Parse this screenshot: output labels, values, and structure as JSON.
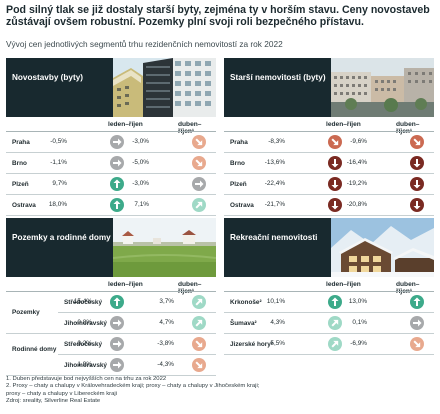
{
  "headline": "Pod silný tlak se již dostaly starší byty, zejména ty v horším stavu. Ceny novostaveb zůstávají ovšem robustní. Pozemky plní svoji roli bezpečného přístavu.",
  "subtitle": "Vývoj cen jednotlivých segmentů trhu rezidenčních nemovitostí za rok 2022",
  "colors": {
    "header_bg": "#18292f",
    "up_strong": "#3daa8a",
    "up_light": "#9fd9c6",
    "neutral": "#a7a9ab",
    "down_light": "#e8a98e",
    "down_mid": "#cb6a52",
    "down_strong": "#7a2a22"
  },
  "panels": {
    "novostavby": {
      "title": "Novostavby (byty)",
      "col1": "leden–říjen",
      "col2": "duben–říjen¹",
      "rows": [
        {
          "label": "Praha",
          "v1": "-0,5%",
          "i1": "neutral-right-arrow-icon",
          "v2": "-3,0%",
          "i2": "down-light-arrow-icon"
        },
        {
          "label": "Brno",
          "v1": "-1,1%",
          "i1": "neutral-right-arrow-icon",
          "v2": "-5,0%",
          "i2": "down-light-arrow-icon"
        },
        {
          "label": "Plzeň",
          "v1": "9,7%",
          "i1": "up-strong-arrow-icon",
          "v2": "-3,0%",
          "i2": "neutral-right-arrow-icon"
        },
        {
          "label": "Ostrava",
          "v1": "18,0%",
          "i1": "up-strong-arrow-icon",
          "v2": "7,1%",
          "i2": "up-light-arrow-icon"
        }
      ]
    },
    "starsi": {
      "title": "Starší nemovitosti (byty)",
      "col1": "leden–říjen",
      "col2": "duben–říjen¹",
      "rows": [
        {
          "label": "Praha",
          "v1": "-8,3%",
          "i1": "down-mid-arrow-icon",
          "v2": "-9,6%",
          "i2": "down-mid-arrow-icon"
        },
        {
          "label": "Brno",
          "v1": "-13,6%",
          "i1": "down-strong-arrow-icon",
          "v2": "-16,4%",
          "i2": "down-strong-arrow-icon"
        },
        {
          "label": "Plzeň",
          "v1": "-22,4%",
          "i1": "down-strong-arrow-icon",
          "v2": "-19,2%",
          "i2": "down-strong-arrow-icon"
        },
        {
          "label": "Ostrava",
          "v1": "-21,7%",
          "i1": "down-strong-arrow-icon",
          "v2": "-20,8%",
          "i2": "down-strong-arrow-icon"
        }
      ]
    },
    "pozemky": {
      "title": "Pozemky a rodinné domy",
      "col1": "leden–říjen",
      "col2": "duben–říjen¹",
      "groups": [
        {
          "label": "Pozemky",
          "rows": [
            {
              "label": "Středočeský",
              "v1": "15,4%",
              "i1": "up-strong-arrow-icon",
              "v2": "3,7%",
              "i2": "up-light-arrow-icon"
            },
            {
              "label": "Jihomoravský",
              "v1": "-0,8%",
              "i1": "neutral-right-arrow-icon",
              "v2": "4,7%",
              "i2": "up-light-arrow-icon"
            }
          ]
        },
        {
          "label": "Rodinné domy",
          "rows": [
            {
              "label": "Středočeský",
              "v1": "0,2%",
              "i1": "neutral-right-arrow-icon",
              "v2": "-3,8%",
              "i2": "down-light-arrow-icon"
            },
            {
              "label": "Jihomoravský",
              "v1": "1,9%",
              "i1": "neutral-right-arrow-icon",
              "v2": "-4,3%",
              "i2": "down-light-arrow-icon"
            }
          ]
        }
      ]
    },
    "rekreacni": {
      "title": "Rekreační nemovitosti",
      "col1": "leden–říjen",
      "col2": "duben–říjen¹",
      "rows": [
        {
          "label": "Krkonoše²",
          "v1": "10,1%",
          "i1": "up-strong-arrow-icon",
          "v2": "13,0%",
          "i2": "up-strong-arrow-icon"
        },
        {
          "label": "Šumava²",
          "v1": "4,3%",
          "i1": "up-light-arrow-icon",
          "v2": "0,1%",
          "i2": "neutral-right-arrow-icon"
        },
        {
          "label": "Jizerské hory²",
          "v1": "5,5%",
          "i1": "up-light-arrow-icon",
          "v2": "-6,9%",
          "i2": "down-light-arrow-icon"
        }
      ]
    }
  },
  "footnotes": [
    "1. Duben představuje bod nejvyšších cen na trhu za rok 2022",
    "2. Proxy – chaty a chalupy v Královehradeckém kraji; proxy – chaty a chalupy v Jihočeském kraji;",
    "proxy – chaty a chalupy v Libereckém kraji",
    "Zdroj: sreality, Silverline Real Estate"
  ]
}
